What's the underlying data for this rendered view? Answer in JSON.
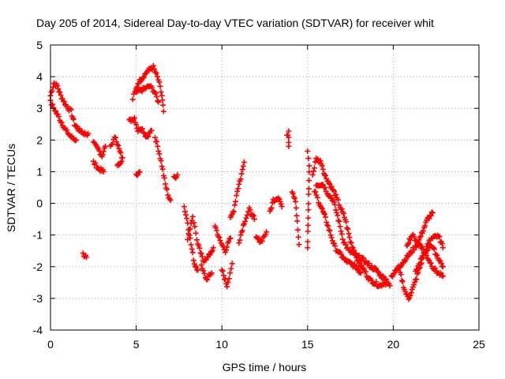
{
  "chart_data": {
    "type": "scatter",
    "title": "Day 205 of 2014, Sidereal Day-to-day VTEC variation (SDTVAR) for receiver whit",
    "xlabel": "GPS time / hours",
    "ylabel": "SDTVAR / TECUs",
    "xlim": [
      0,
      25
    ],
    "ylim": [
      -4,
      5
    ],
    "xticks": [
      "0",
      "5",
      "10",
      "15",
      "20",
      "25"
    ],
    "yticks": [
      "-4",
      "-3",
      "-2",
      "-1",
      "0",
      "1",
      "2",
      "3",
      "4",
      "5"
    ],
    "grid": true,
    "marker": "+",
    "color": "#ff0000",
    "series": [
      {
        "name": "SDTVAR",
        "segments": [
          [
            [
              0.0,
              3.4
            ],
            [
              0.2,
              3.8
            ],
            [
              0.4,
              3.7
            ],
            [
              0.6,
              3.4
            ],
            [
              0.9,
              3.1
            ],
            [
              1.2,
              2.9
            ],
            [
              1.4,
              2.5
            ],
            [
              1.7,
              2.3
            ],
            [
              2.0,
              2.2
            ],
            [
              2.2,
              2.2
            ]
          ],
          [
            [
              0.0,
              3.2
            ],
            [
              0.3,
              2.9
            ],
            [
              0.6,
              2.6
            ],
            [
              0.9,
              2.3
            ],
            [
              1.2,
              2.1
            ],
            [
              1.5,
              2.0
            ]
          ],
          [
            [
              1.9,
              -1.6
            ],
            [
              2.1,
              -1.7
            ]
          ],
          [
            [
              2.5,
              1.9
            ],
            [
              2.8,
              1.7
            ],
            [
              3.0,
              1.5
            ],
            [
              3.2,
              1.8
            ]
          ],
          [
            [
              2.5,
              1.3
            ],
            [
              2.8,
              1.1
            ],
            [
              3.1,
              1.0
            ]
          ],
          [
            [
              3.5,
              1.8
            ],
            [
              3.8,
              2.1
            ],
            [
              4.0,
              1.7
            ],
            [
              4.2,
              1.4
            ],
            [
              3.9,
              1.2
            ]
          ],
          [
            [
              4.6,
              2.6
            ],
            [
              4.9,
              2.7
            ],
            [
              5.1,
              2.3
            ],
            [
              5.3,
              2.4
            ],
            [
              5.6,
              2.1
            ],
            [
              5.9,
              2.3
            ]
          ],
          [
            [
              4.8,
              3.3
            ],
            [
              5.1,
              3.8
            ],
            [
              5.4,
              4.0
            ],
            [
              5.7,
              4.2
            ],
            [
              6.0,
              4.3
            ],
            [
              6.3,
              3.9
            ],
            [
              6.5,
              3.4
            ],
            [
              6.6,
              2.9
            ]
          ],
          [
            [
              5.0,
              3.5
            ],
            [
              5.4,
              3.6
            ],
            [
              5.8,
              3.7
            ],
            [
              6.1,
              3.5
            ],
            [
              6.3,
              3.2
            ]
          ],
          [
            [
              5.0,
              0.9
            ],
            [
              5.2,
              1.0
            ]
          ],
          [
            [
              6.1,
              2.1
            ],
            [
              6.3,
              1.7
            ],
            [
              6.5,
              1.2
            ],
            [
              6.7,
              0.6
            ],
            [
              6.9,
              0.2
            ],
            [
              7.0,
              0.1
            ]
          ],
          [
            [
              7.2,
              0.8
            ],
            [
              7.4,
              0.9
            ]
          ],
          [
            [
              7.8,
              -0.1
            ],
            [
              8.0,
              -0.6
            ],
            [
              8.2,
              -1.3
            ],
            [
              8.4,
              -1.9
            ],
            [
              8.6,
              -2.1
            ]
          ],
          [
            [
              8.0,
              -1.1
            ],
            [
              8.3,
              -0.4
            ],
            [
              8.6,
              -1.3
            ],
            [
              8.9,
              -1.8
            ],
            [
              9.2,
              -1.7
            ],
            [
              9.5,
              -1.4
            ]
          ],
          [
            [
              8.8,
              -2.0
            ],
            [
              9.1,
              -2.4
            ],
            [
              9.4,
              -2.2
            ]
          ],
          [
            [
              9.6,
              -0.7
            ],
            [
              9.9,
              -1.2
            ],
            [
              10.2,
              -1.5
            ],
            [
              10.5,
              -1.1
            ]
          ],
          [
            [
              10.0,
              -2.1
            ],
            [
              10.3,
              -2.6
            ],
            [
              10.6,
              -1.9
            ]
          ],
          [
            [
              10.5,
              -0.5
            ],
            [
              10.7,
              -0.2
            ],
            [
              10.9,
              0.4
            ],
            [
              11.1,
              0.8
            ],
            [
              11.3,
              1.3
            ]
          ],
          [
            [
              11.0,
              -1.2
            ],
            [
              11.3,
              -0.6
            ],
            [
              11.6,
              -0.2
            ],
            [
              11.9,
              -0.5
            ]
          ],
          [
            [
              12.0,
              -1.1
            ],
            [
              12.3,
              -1.2
            ],
            [
              12.6,
              -0.9
            ]
          ],
          [
            [
              12.8,
              -0.3
            ],
            [
              13.0,
              0.1
            ],
            [
              13.3,
              0.2
            ],
            [
              13.5,
              -0.1
            ]
          ],
          [
            [
              13.8,
              2.1
            ],
            [
              13.9,
              2.3
            ],
            [
              13.9,
              1.8
            ]
          ],
          [
            [
              14.1,
              0.4
            ],
            [
              14.3,
              0.1
            ],
            [
              14.4,
              -0.6
            ],
            [
              14.5,
              -1.3
            ]
          ],
          [
            [
              15.0,
              1.6
            ],
            [
              15.1,
              1.2
            ],
            [
              15.0,
              -1.4
            ]
          ],
          [
            [
              15.3,
              0.9
            ],
            [
              15.5,
              1.4
            ],
            [
              15.8,
              1.3
            ],
            [
              16.0,
              0.9
            ],
            [
              16.3,
              0.6
            ],
            [
              16.6,
              0.3
            ],
            [
              16.9,
              -0.1
            ],
            [
              17.2,
              -0.5
            ],
            [
              17.5,
              -1.2
            ],
            [
              17.8,
              -1.6
            ],
            [
              18.0,
              -1.9
            ],
            [
              18.3,
              -2.1
            ],
            [
              18.6,
              -2.4
            ],
            [
              18.9,
              -2.5
            ],
            [
              19.2,
              -2.6
            ],
            [
              19.5,
              -2.5
            ],
            [
              19.8,
              -2.6
            ]
          ],
          [
            [
              15.4,
              0.4
            ],
            [
              15.7,
              0.0
            ],
            [
              16.0,
              -0.4
            ],
            [
              16.3,
              -0.9
            ],
            [
              16.6,
              -1.4
            ],
            [
              16.9,
              -1.6
            ],
            [
              17.2,
              -1.8
            ],
            [
              17.5,
              -1.9
            ],
            [
              17.8,
              -2.0
            ],
            [
              18.1,
              -2.2
            ]
          ],
          [
            [
              15.5,
              0.6
            ],
            [
              15.9,
              0.6
            ],
            [
              16.2,
              0.3
            ],
            [
              16.5,
              0.1
            ],
            [
              16.8,
              -0.5
            ],
            [
              17.1,
              -1.2
            ],
            [
              17.4,
              -1.5
            ],
            [
              17.7,
              -1.6
            ],
            [
              18.0,
              -1.7
            ],
            [
              18.3,
              -1.8
            ],
            [
              18.7,
              -2.0
            ],
            [
              19.0,
              -2.1
            ],
            [
              19.3,
              -2.3
            ],
            [
              19.6,
              -2.4
            ]
          ],
          [
            [
              19.9,
              -2.3
            ],
            [
              20.2,
              -2.1
            ],
            [
              20.5,
              -1.9
            ],
            [
              20.8,
              -1.7
            ],
            [
              21.1,
              -1.5
            ],
            [
              21.4,
              -1.3
            ],
            [
              21.7,
              -0.9
            ],
            [
              22.0,
              -0.5
            ],
            [
              22.3,
              -0.3
            ]
          ],
          [
            [
              20.3,
              -2.0
            ],
            [
              20.5,
              -2.4
            ],
            [
              20.7,
              -2.8
            ],
            [
              20.9,
              -3.0
            ],
            [
              21.2,
              -2.6
            ],
            [
              21.5,
              -2.1
            ],
            [
              21.8,
              -1.6
            ],
            [
              22.1,
              -1.2
            ],
            [
              22.4,
              -1.0
            ],
            [
              22.7,
              -1.1
            ],
            [
              22.9,
              -1.4
            ]
          ],
          [
            [
              20.8,
              -1.3
            ],
            [
              21.1,
              -1.0
            ],
            [
              21.4,
              -1.2
            ],
            [
              21.7,
              -1.4
            ],
            [
              22.0,
              -1.7
            ],
            [
              22.3,
              -2.0
            ],
            [
              22.6,
              -2.2
            ],
            [
              22.9,
              -2.3
            ]
          ],
          [
            [
              21.3,
              -2.2
            ],
            [
              21.6,
              -1.8
            ],
            [
              21.9,
              -1.5
            ],
            [
              22.2,
              -1.3
            ],
            [
              22.5,
              -1.6
            ],
            [
              22.8,
              -1.9
            ],
            [
              22.9,
              -2.0
            ]
          ]
        ]
      }
    ]
  }
}
